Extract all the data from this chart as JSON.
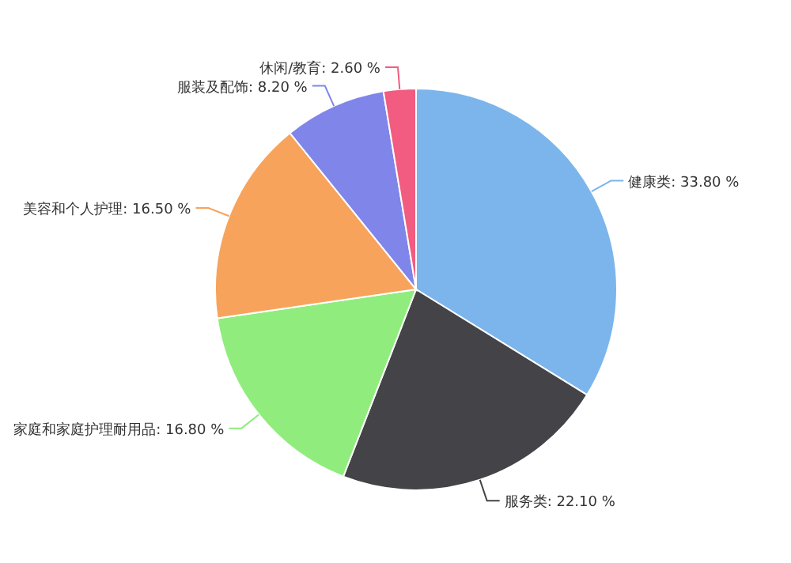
{
  "chart_data": {
    "type": "pie",
    "categories": [
      "健康类",
      "服务类",
      "家庭和家庭护理耐用品",
      "美容和个人护理",
      "服装及配饰",
      "休闲/教育"
    ],
    "values": [
      33.8,
      22.1,
      16.8,
      16.5,
      8.2,
      2.6
    ],
    "value_labels": [
      "33.80 %",
      "22.10 %",
      "16.80 %",
      "16.50 %",
      "8.20 %",
      "2.60 %"
    ],
    "colors": [
      "#7cb5ec",
      "#434348",
      "#90ed7d",
      "#f7a35c",
      "#8085e9",
      "#f15c80"
    ]
  }
}
